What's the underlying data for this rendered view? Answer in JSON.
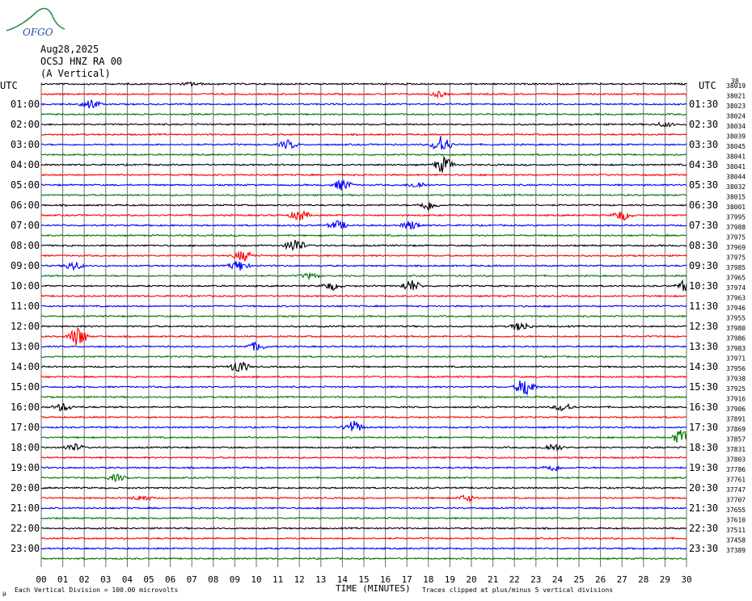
{
  "header": {
    "logo_text": "OFGO",
    "date": "Aug28,2025",
    "station": "OCSJ HNZ RA 00",
    "component": "(A Vertical)"
  },
  "chart_data": {
    "type": "line",
    "left_axis_label": "UTC",
    "right_axis_label": "UTC",
    "left_time_labels": [
      "01:00",
      "02:00",
      "03:00",
      "04:00",
      "05:00",
      "06:00",
      "07:00",
      "08:00",
      "09:00",
      "10:00",
      "11:00",
      "12:00",
      "13:00",
      "14:00",
      "15:00",
      "16:00",
      "17:00",
      "18:00",
      "19:00",
      "20:00",
      "21:00",
      "22:00",
      "23:00"
    ],
    "right_time_labels": [
      "01:30",
      "02:30",
      "03:30",
      "04:30",
      "05:30",
      "06:30",
      "07:30",
      "08:30",
      "09:30",
      "10:30",
      "11:30",
      "12:30",
      "13:30",
      "14:30",
      "15:30",
      "16:30",
      "17:30",
      "18:30",
      "19:30",
      "20:30",
      "21:30",
      "22:30",
      "23:30"
    ],
    "x_ticks": [
      "00",
      "01",
      "02",
      "03",
      "04",
      "05",
      "06",
      "07",
      "08",
      "09",
      "10",
      "11",
      "12",
      "13",
      "14",
      "15",
      "16",
      "17",
      "18",
      "19",
      "20",
      "21",
      "22",
      "23",
      "24",
      "25",
      "26",
      "27",
      "28",
      "29",
      "30"
    ],
    "xlim": [
      0,
      30
    ],
    "xlabel": "TIME (MINUTES)",
    "trace_count": 48,
    "trace_colors": [
      "#000000",
      "#ff0000",
      "#0000ff",
      "#007700"
    ],
    "counts_top": "38",
    "counts": [
      "38019",
      "38021",
      "38023",
      "38024",
      "38034",
      "38039",
      "38045",
      "38041",
      "38041",
      "38044",
      "38032",
      "38015",
      "38001",
      "37995",
      "37988",
      "37975",
      "37969",
      "37975",
      "37985",
      "37965",
      "37974",
      "37963",
      "37946",
      "37955",
      "37980",
      "37986",
      "37983",
      "37971",
      "37956",
      "37938",
      "37925",
      "37916",
      "37906",
      "37891",
      "37869",
      "37857",
      "37831",
      "37803",
      "37786",
      "37761",
      "37747",
      "37707",
      "37655",
      "37610",
      "37511",
      "37458",
      "37389"
    ],
    "grid": true,
    "events": [
      {
        "trace": 0,
        "minute": 7.0,
        "amp": 0.3
      },
      {
        "trace": 1,
        "minute": 18.5,
        "amp": 0.5
      },
      {
        "trace": 2,
        "minute": 2.3,
        "amp": 0.9
      },
      {
        "trace": 4,
        "minute": 29.0,
        "amp": 0.4
      },
      {
        "trace": 6,
        "minute": 11.5,
        "amp": 0.8
      },
      {
        "trace": 6,
        "minute": 18.6,
        "amp": 1.8
      },
      {
        "trace": 8,
        "minute": 18.7,
        "amp": 1.5
      },
      {
        "trace": 10,
        "minute": 14.0,
        "amp": 1.0
      },
      {
        "trace": 10,
        "minute": 17.5,
        "amp": 0.6
      },
      {
        "trace": 12,
        "minute": 18.0,
        "amp": 0.9
      },
      {
        "trace": 13,
        "minute": 12.0,
        "amp": 1.0
      },
      {
        "trace": 13,
        "minute": 27.0,
        "amp": 0.9
      },
      {
        "trace": 14,
        "minute": 13.8,
        "amp": 0.8
      },
      {
        "trace": 14,
        "minute": 17.2,
        "amp": 0.8
      },
      {
        "trace": 16,
        "minute": 11.8,
        "amp": 1.3
      },
      {
        "trace": 17,
        "minute": 9.4,
        "amp": 1.0
      },
      {
        "trace": 18,
        "minute": 1.5,
        "amp": 0.8
      },
      {
        "trace": 18,
        "minute": 9.2,
        "amp": 1.0
      },
      {
        "trace": 19,
        "minute": 12.5,
        "amp": 0.5
      },
      {
        "trace": 20,
        "minute": 13.5,
        "amp": 0.7
      },
      {
        "trace": 20,
        "minute": 17.2,
        "amp": 1.1
      },
      {
        "trace": 20,
        "minute": 30.0,
        "amp": 1.2
      },
      {
        "trace": 24,
        "minute": 22.3,
        "amp": 0.8
      },
      {
        "trace": 25,
        "minute": 1.7,
        "amp": 1.8
      },
      {
        "trace": 26,
        "minute": 10.0,
        "amp": 0.8
      },
      {
        "trace": 28,
        "minute": 9.2,
        "amp": 1.2
      },
      {
        "trace": 30,
        "minute": 22.5,
        "amp": 1.8
      },
      {
        "trace": 32,
        "minute": 1.0,
        "amp": 0.7
      },
      {
        "trace": 32,
        "minute": 24.3,
        "amp": 0.8
      },
      {
        "trace": 34,
        "minute": 14.5,
        "amp": 1.2
      },
      {
        "trace": 35,
        "minute": 29.8,
        "amp": 1.5
      },
      {
        "trace": 36,
        "minute": 1.5,
        "amp": 0.7
      },
      {
        "trace": 36,
        "minute": 23.8,
        "amp": 0.7
      },
      {
        "trace": 38,
        "minute": 23.8,
        "amp": 0.6
      },
      {
        "trace": 39,
        "minute": 3.5,
        "amp": 0.6
      },
      {
        "trace": 41,
        "minute": 4.7,
        "amp": 0.5
      },
      {
        "trace": 41,
        "minute": 19.8,
        "amp": 0.6
      }
    ]
  },
  "footer": {
    "scale_note": "Each Vertical Division =  100.00 microvolts",
    "clip_note": "Traces clipped at plus/minus 5 vertical divisions",
    "corner_mark": "μ"
  }
}
